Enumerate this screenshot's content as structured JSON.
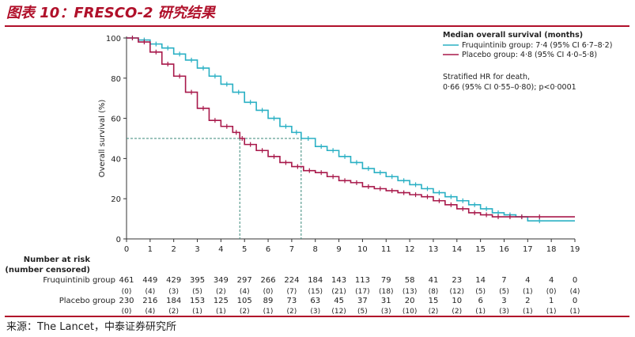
{
  "figure_title": "图表 10：FRESCO-2 研究结果",
  "source": "来源：The Lancet，中泰证券研究所",
  "colors": {
    "brand_red": "#b0102a",
    "fruq": "#2ab0c4",
    "placebo": "#a8184a",
    "guide": "#3a8a7a"
  },
  "chart_data": {
    "type": "line",
    "ylabel": "Overall survival (%)",
    "xlim": [
      0,
      19
    ],
    "ylim": [
      0,
      100
    ],
    "yticks": [
      0,
      20,
      40,
      60,
      80,
      100
    ],
    "xticks": [
      0,
      1,
      2,
      3,
      4,
      5,
      6,
      7,
      8,
      9,
      10,
      11,
      12,
      13,
      14,
      15,
      16,
      17,
      18,
      19
    ],
    "legend": {
      "title": "Median overall survival (months)",
      "placement": "top-right",
      "entries": [
        "Fruquintinib group: 7·4 (95% CI 6·7–8·2)",
        "Placebo group: 4·8 (95% CI 4·0–5·8)"
      ]
    },
    "annotation": [
      "Stratified HR for death,",
      "0·66 (95% CI 0·55–0·80); p<0·0001"
    ],
    "medians": [
      {
        "x": 7.4,
        "y": 50,
        "series": "fruq"
      },
      {
        "x": 4.8,
        "y": 50,
        "series": "placebo"
      }
    ],
    "series": [
      {
        "key": "fruq",
        "name": "Fruquintinib group",
        "x": [
          0,
          0.5,
          1,
          1.5,
          2,
          2.5,
          3,
          3.5,
          4,
          4.5,
          5,
          5.5,
          6,
          6.5,
          7,
          7.4,
          8,
          8.5,
          9,
          9.5,
          10,
          10.5,
          11,
          11.5,
          12,
          12.5,
          13,
          13.5,
          14,
          14.5,
          15,
          15.5,
          16,
          16.5,
          17,
          18,
          19
        ],
        "y": [
          100,
          99,
          97,
          95,
          92,
          89,
          85,
          81,
          77,
          73,
          68,
          64,
          60,
          56,
          53,
          50,
          46,
          44,
          41,
          38,
          35,
          33,
          31,
          29,
          27,
          25,
          23,
          21,
          19,
          17,
          15,
          13,
          12,
          11,
          9,
          9,
          9
        ]
      },
      {
        "key": "placebo",
        "name": "Placebo group",
        "x": [
          0,
          0.5,
          1,
          1.5,
          2,
          2.5,
          3,
          3.5,
          4,
          4.5,
          4.8,
          5,
          5.5,
          6,
          6.5,
          7,
          7.5,
          8,
          8.5,
          9,
          9.5,
          10,
          10.5,
          11,
          11.5,
          12,
          12.5,
          13,
          13.5,
          14,
          14.5,
          15,
          15.5,
          16,
          16.5,
          17,
          18,
          19
        ],
        "y": [
          100,
          98,
          93,
          87,
          81,
          73,
          65,
          59,
          56,
          53,
          50,
          47,
          44,
          41,
          38,
          36,
          34,
          33,
          31,
          29,
          28,
          26,
          25,
          24,
          23,
          22,
          21,
          19,
          17,
          15,
          13,
          12,
          11,
          11,
          11,
          11,
          11,
          11
        ]
      }
    ]
  },
  "risk_table": {
    "header": [
      "Number at risk",
      "(number censored)"
    ],
    "rows": [
      {
        "label": "Fruquintinib group",
        "at_risk": [
          "461",
          "449",
          "429",
          "395",
          "349",
          "297",
          "266",
          "224",
          "184",
          "143",
          "113",
          "79",
          "58",
          "41",
          "23",
          "14",
          "7",
          "4",
          "4",
          "0"
        ],
        "censored": [
          "(0)",
          "(4)",
          "(3)",
          "(5)",
          "(2)",
          "(4)",
          "(0)",
          "(7)",
          "(15)",
          "(21)",
          "(17)",
          "(18)",
          "(13)",
          "(8)",
          "(12)",
          "(5)",
          "(5)",
          "(1)",
          "(0)",
          "(4)"
        ]
      },
      {
        "label": "Placebo group",
        "at_risk": [
          "230",
          "216",
          "184",
          "153",
          "125",
          "105",
          "89",
          "73",
          "63",
          "45",
          "37",
          "31",
          "20",
          "15",
          "10",
          "6",
          "3",
          "2",
          "1",
          "0"
        ],
        "censored": [
          "(0)",
          "(4)",
          "(2)",
          "(1)",
          "(1)",
          "(2)",
          "(1)",
          "(2)",
          "(3)",
          "(12)",
          "(5)",
          "(3)",
          "(10)",
          "(2)",
          "(2)",
          "(1)",
          "(3)",
          "(1)",
          "(1)",
          "(1)"
        ]
      }
    ]
  }
}
